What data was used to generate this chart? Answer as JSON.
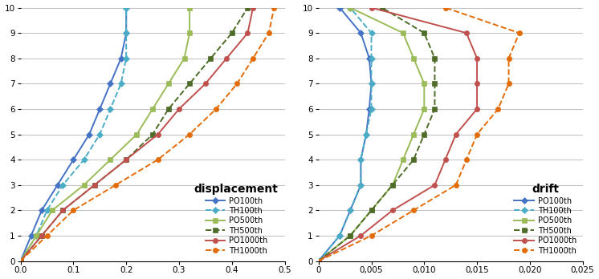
{
  "displacement": {
    "PO100th": {
      "x": [
        0,
        0.02,
        0.04,
        0.07,
        0.1,
        0.13,
        0.15,
        0.17,
        0.19,
        0.2,
        0.2
      ],
      "y": [
        0,
        1,
        2,
        3,
        4,
        5,
        6,
        7,
        8,
        9,
        10
      ],
      "color": "#4472C4",
      "linestyle": "solid",
      "marker": "D"
    },
    "TH100th": {
      "x": [
        0,
        0.03,
        0.05,
        0.08,
        0.12,
        0.15,
        0.17,
        0.19,
        0.2,
        0.2,
        0.2
      ],
      "y": [
        0,
        1,
        2,
        3,
        4,
        5,
        6,
        7,
        8,
        9,
        10
      ],
      "color": "#4BACC6",
      "linestyle": "dashed",
      "marker": "D"
    },
    "PO500th": {
      "x": [
        0,
        0.03,
        0.06,
        0.12,
        0.17,
        0.22,
        0.25,
        0.28,
        0.31,
        0.32,
        0.32
      ],
      "y": [
        0,
        1,
        2,
        3,
        4,
        5,
        6,
        7,
        8,
        9,
        10
      ],
      "color": "#9BBB59",
      "linestyle": "solid",
      "marker": "s"
    },
    "TH500th": {
      "x": [
        0,
        0.04,
        0.08,
        0.14,
        0.2,
        0.25,
        0.28,
        0.32,
        0.36,
        0.4,
        0.43
      ],
      "y": [
        0,
        1,
        2,
        3,
        4,
        5,
        6,
        7,
        8,
        9,
        10
      ],
      "color": "#4E6B28",
      "linestyle": "dashed",
      "marker": "s"
    },
    "PO1000th": {
      "x": [
        0,
        0.04,
        0.08,
        0.14,
        0.2,
        0.26,
        0.3,
        0.35,
        0.39,
        0.43,
        0.44
      ],
      "y": [
        0,
        1,
        2,
        3,
        4,
        5,
        6,
        7,
        8,
        9,
        10
      ],
      "color": "#C0504D",
      "linestyle": "solid",
      "marker": "o"
    },
    "TH1000th": {
      "x": [
        0,
        0.05,
        0.1,
        0.18,
        0.26,
        0.32,
        0.37,
        0.41,
        0.44,
        0.47,
        0.48
      ],
      "y": [
        0,
        1,
        2,
        3,
        4,
        5,
        6,
        7,
        8,
        9,
        10
      ],
      "color": "#E36C09",
      "linestyle": "dashed",
      "marker": "o"
    }
  },
  "drift": {
    "PO100th": {
      "x": [
        0,
        0.002,
        0.003,
        0.004,
        0.004,
        0.0045,
        0.0048,
        0.005,
        0.0048,
        0.004,
        0.002
      ],
      "y": [
        0,
        1,
        2,
        3,
        4,
        5,
        6,
        7,
        8,
        9,
        10
      ],
      "color": "#4472C4",
      "linestyle": "solid",
      "marker": "D"
    },
    "TH100th": {
      "x": [
        0,
        0.002,
        0.003,
        0.004,
        0.004,
        0.0045,
        0.005,
        0.005,
        0.005,
        0.005,
        0.003
      ],
      "y": [
        0,
        1,
        2,
        3,
        4,
        5,
        6,
        7,
        8,
        9,
        10
      ],
      "color": "#4BACC6",
      "linestyle": "dashed",
      "marker": "D"
    },
    "PO500th": {
      "x": [
        0,
        0.003,
        0.005,
        0.007,
        0.008,
        0.009,
        0.01,
        0.01,
        0.009,
        0.008,
        0.003
      ],
      "y": [
        0,
        1,
        2,
        3,
        4,
        5,
        6,
        7,
        8,
        9,
        10
      ],
      "color": "#9BBB59",
      "linestyle": "solid",
      "marker": "s"
    },
    "TH500th": {
      "x": [
        0,
        0.003,
        0.005,
        0.007,
        0.009,
        0.01,
        0.011,
        0.011,
        0.011,
        0.01,
        0.006
      ],
      "y": [
        0,
        1,
        2,
        3,
        4,
        5,
        6,
        7,
        8,
        9,
        10
      ],
      "color": "#4E6B28",
      "linestyle": "dashed",
      "marker": "s"
    },
    "PO1000th": {
      "x": [
        0,
        0.004,
        0.007,
        0.011,
        0.012,
        0.013,
        0.015,
        0.015,
        0.015,
        0.014,
        0.005
      ],
      "y": [
        0,
        1,
        2,
        3,
        4,
        5,
        6,
        7,
        8,
        9,
        10
      ],
      "color": "#C0504D",
      "linestyle": "solid",
      "marker": "o"
    },
    "TH1000th": {
      "x": [
        0,
        0.005,
        0.009,
        0.013,
        0.014,
        0.015,
        0.017,
        0.018,
        0.018,
        0.019,
        0.012
      ],
      "y": [
        0,
        1,
        2,
        3,
        4,
        5,
        6,
        7,
        8,
        9,
        10
      ],
      "color": "#E36C09",
      "linestyle": "dashed",
      "marker": "o"
    }
  },
  "disp_xlim": [
    0,
    0.5
  ],
  "disp_xticks": [
    0,
    0.1,
    0.2,
    0.3,
    0.4,
    0.5
  ],
  "drift_xlim": [
    0,
    0.025
  ],
  "drift_xticks": [
    0,
    0.005,
    0.01,
    0.015,
    0.02,
    0.025
  ],
  "ylim": [
    0,
    10
  ],
  "yticks": [
    0,
    1,
    2,
    3,
    4,
    5,
    6,
    7,
    8,
    9,
    10
  ],
  "legend_order": [
    "PO100th",
    "TH100th",
    "PO500th",
    "TH500th",
    "PO1000th",
    "TH1000th"
  ],
  "disp_legend_title": "displacement",
  "drift_legend_title": "drift",
  "background_color": "#FFFFFF",
  "grid_color": "#BFBFBF"
}
